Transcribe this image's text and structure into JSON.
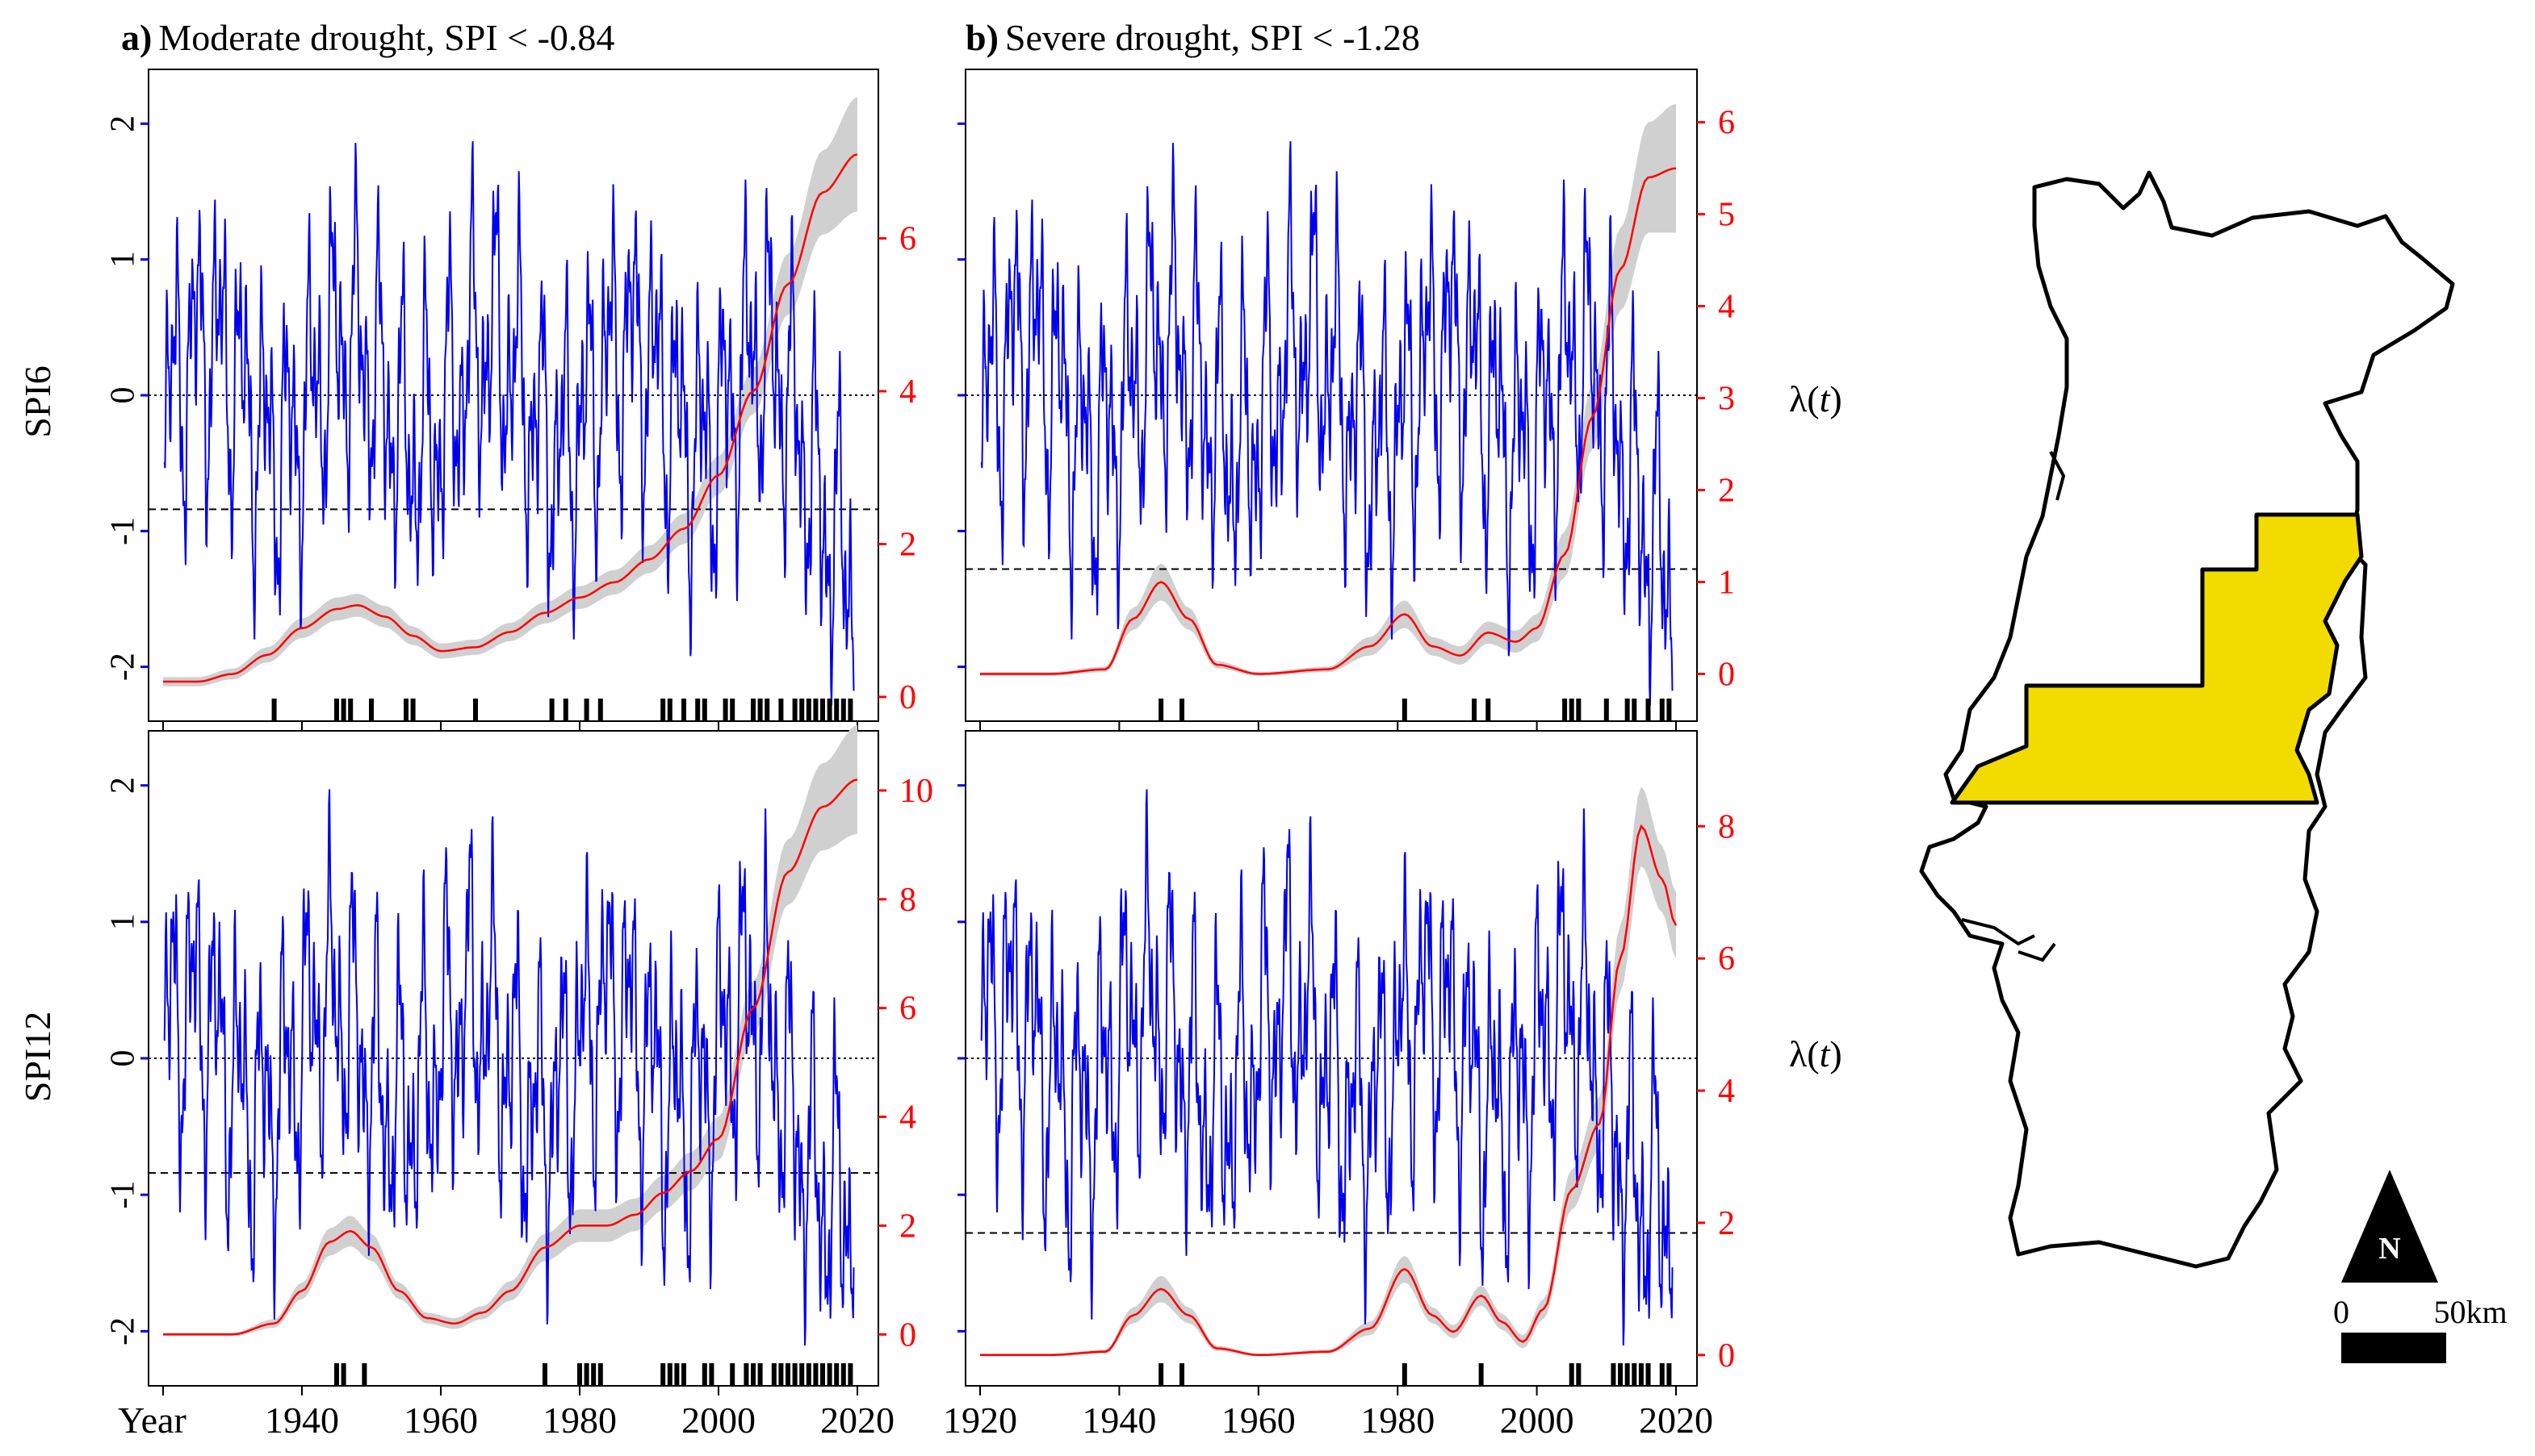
{
  "figure": {
    "title_a_prefix": "a)",
    "title_a_text": "Moderate drought, SPI < -0.84",
    "title_b_prefix": "b)",
    "title_b_text": "Severe drought, SPI < -1.28",
    "row_label_top": "SPI6",
    "row_label_bottom": "SPI12",
    "lambda_label_prefix": "λ(",
    "lambda_label_var": "t",
    "lambda_label_suffix": ")",
    "year_label": "Year",
    "x_ticks_left": [
      "1940",
      "1960",
      "1980",
      "2000",
      "2020"
    ],
    "x_ticks_right": [
      "1920",
      "1940",
      "1960",
      "1980",
      "2000",
      "2020"
    ]
  },
  "map": {
    "north_label": "N",
    "scale_zero": "0",
    "scale_label": "50km",
    "region_color": "#f2dc00"
  },
  "colors": {
    "spi_line": "#0000ee",
    "lambda_line": "#ff0000",
    "ci_band": "#d0d0d0",
    "right_axis": "#ff0000",
    "left_tick": "#0000ee"
  },
  "chart_data": [
    {
      "id": "spi6-moderate",
      "type": "line",
      "title": "a) Moderate drought, SPI < -0.84",
      "ylabel": "SPI6",
      "x_range": [
        1920,
        2020
      ],
      "ylim_left": [
        -2.4,
        2.4
      ],
      "ylim_right": [
        0,
        8
      ],
      "left_ticks": [
        -2,
        -1,
        0,
        1,
        2
      ],
      "right_ticks": [
        0,
        2,
        4,
        6
      ],
      "threshold": -0.84,
      "zero_line": 0,
      "lambda": {
        "name": "λ(t)",
        "x": [
          1920,
          1925,
          1930,
          1935,
          1940,
          1945,
          1948,
          1952,
          1956,
          1960,
          1965,
          1970,
          1975,
          1980,
          1985,
          1990,
          1995,
          2000,
          2005,
          2010,
          2015,
          2020
        ],
        "y": [
          0.2,
          0.2,
          0.3,
          0.55,
          0.9,
          1.15,
          1.2,
          1.05,
          0.8,
          0.6,
          0.65,
          0.85,
          1.1,
          1.3,
          1.5,
          1.8,
          2.2,
          2.9,
          4.0,
          5.4,
          6.6,
          7.1
        ],
        "ci_width": [
          0.06,
          0.06,
          0.07,
          0.1,
          0.13,
          0.15,
          0.15,
          0.14,
          0.12,
          0.1,
          0.1,
          0.12,
          0.14,
          0.15,
          0.16,
          0.18,
          0.2,
          0.25,
          0.3,
          0.4,
          0.55,
          0.75
        ]
      },
      "events": [
        1936,
        1945,
        1946,
        1947,
        1950,
        1955,
        1956,
        1965,
        1976,
        1978,
        1981,
        1983,
        1992,
        1993,
        1995,
        1997,
        1998,
        2001,
        2002,
        2005,
        2006,
        2007,
        2009,
        2011,
        2012,
        2013,
        2014,
        2015,
        2016,
        2017,
        2018,
        2019
      ]
    },
    {
      "id": "spi6-severe",
      "type": "line",
      "title": "b) Severe drought, SPI < -1.28",
      "ylabel": "",
      "x_range": [
        1920,
        2020
      ],
      "ylim_left": [
        -2.4,
        2.4
      ],
      "ylim_right": [
        -0.25,
        6.4
      ],
      "left_ticks": [
        -2,
        -1,
        0,
        1,
        2
      ],
      "right_ticks": [
        0,
        1,
        2,
        3,
        4,
        5,
        6
      ],
      "threshold": -1.28,
      "zero_line": 0,
      "lambda": {
        "name": "λ(t)",
        "x": [
          1920,
          1930,
          1938,
          1942,
          1946,
          1950,
          1954,
          1960,
          1970,
          1976,
          1981,
          1985,
          1989,
          1993,
          1997,
          2000,
          2004,
          2008,
          2012,
          2016,
          2020
        ],
        "y": [
          0.0,
          0.0,
          0.05,
          0.6,
          1.0,
          0.6,
          0.1,
          0.0,
          0.05,
          0.3,
          0.65,
          0.3,
          0.2,
          0.45,
          0.35,
          0.5,
          1.3,
          2.8,
          4.4,
          5.4,
          5.5
        ],
        "ci_width": [
          0.02,
          0.02,
          0.03,
          0.12,
          0.2,
          0.12,
          0.04,
          0.02,
          0.03,
          0.1,
          0.15,
          0.1,
          0.1,
          0.12,
          0.12,
          0.15,
          0.25,
          0.35,
          0.45,
          0.6,
          0.7
        ]
      },
      "events": [
        1946,
        1949,
        1981,
        1991,
        1993,
        2004,
        2005,
        2006,
        2010,
        2013,
        2014,
        2016,
        2018,
        2019
      ]
    },
    {
      "id": "spi12-moderate",
      "type": "line",
      "title": "",
      "ylabel": "SPI12",
      "x_range": [
        1920,
        2020
      ],
      "ylim_left": [
        -2.4,
        2.4
      ],
      "ylim_right": [
        -0.5,
        10.8
      ],
      "left_ticks": [
        -2,
        -1,
        0,
        1,
        2
      ],
      "right_ticks": [
        0,
        2,
        4,
        6,
        8,
        10
      ],
      "threshold": -0.84,
      "zero_line": 0,
      "lambda": {
        "name": "λ(t)",
        "x": [
          1920,
          1930,
          1936,
          1940,
          1944,
          1947,
          1950,
          1954,
          1958,
          1962,
          1966,
          1970,
          1975,
          1980,
          1984,
          1988,
          1992,
          1996,
          2000,
          2005,
          2010,
          2015,
          2020
        ],
        "y": [
          0.0,
          0.0,
          0.2,
          0.8,
          1.7,
          1.9,
          1.6,
          0.8,
          0.3,
          0.2,
          0.4,
          0.8,
          1.6,
          2.0,
          2.0,
          2.2,
          2.6,
          3.0,
          3.6,
          6.0,
          8.5,
          9.7,
          10.2
        ],
        "ci_width": [
          0.03,
          0.03,
          0.08,
          0.15,
          0.25,
          0.28,
          0.25,
          0.15,
          0.1,
          0.1,
          0.12,
          0.18,
          0.25,
          0.3,
          0.3,
          0.3,
          0.32,
          0.35,
          0.4,
          0.5,
          0.6,
          0.8,
          1.0
        ]
      },
      "events": [
        1945,
        1946,
        1949,
        1975,
        1980,
        1981,
        1982,
        1983,
        1992,
        1993,
        1994,
        1995,
        1998,
        1999,
        2002,
        2004,
        2005,
        2006,
        2008,
        2009,
        2010,
        2011,
        2012,
        2013,
        2014,
        2015,
        2016,
        2017,
        2018,
        2019
      ]
    },
    {
      "id": "spi12-severe",
      "type": "line",
      "title": "",
      "ylabel": "",
      "x_range": [
        1920,
        2020
      ],
      "ylim_left": [
        -2.4,
        2.4
      ],
      "ylim_right": [
        -0.1,
        9.2
      ],
      "left_ticks": [
        -2,
        -1,
        0,
        1,
        2
      ],
      "right_ticks": [
        0,
        2,
        4,
        6,
        8
      ],
      "threshold": -1.28,
      "zero_line": 0,
      "lambda": {
        "name": "λ(t)",
        "x": [
          1920,
          1930,
          1938,
          1942,
          1946,
          1950,
          1954,
          1960,
          1970,
          1976,
          1981,
          1985,
          1988,
          1992,
          1995,
          1998,
          2001,
          2005,
          2009,
          2012,
          2015,
          2018,
          2020
        ],
        "y": [
          0.0,
          0.0,
          0.05,
          0.6,
          1.0,
          0.6,
          0.1,
          0.0,
          0.05,
          0.4,
          1.3,
          0.6,
          0.35,
          0.9,
          0.5,
          0.2,
          0.7,
          2.5,
          3.5,
          6.0,
          8.0,
          7.2,
          6.5
        ],
        "ci_width": [
          0.02,
          0.02,
          0.03,
          0.12,
          0.2,
          0.12,
          0.04,
          0.02,
          0.03,
          0.1,
          0.2,
          0.12,
          0.1,
          0.15,
          0.12,
          0.1,
          0.15,
          0.3,
          0.4,
          0.5,
          0.6,
          0.5,
          0.5
        ]
      },
      "events": [
        1946,
        1949,
        1981,
        1992,
        2005,
        2006,
        2011,
        2012,
        2013,
        2014,
        2015,
        2016,
        2018,
        2019
      ]
    }
  ]
}
